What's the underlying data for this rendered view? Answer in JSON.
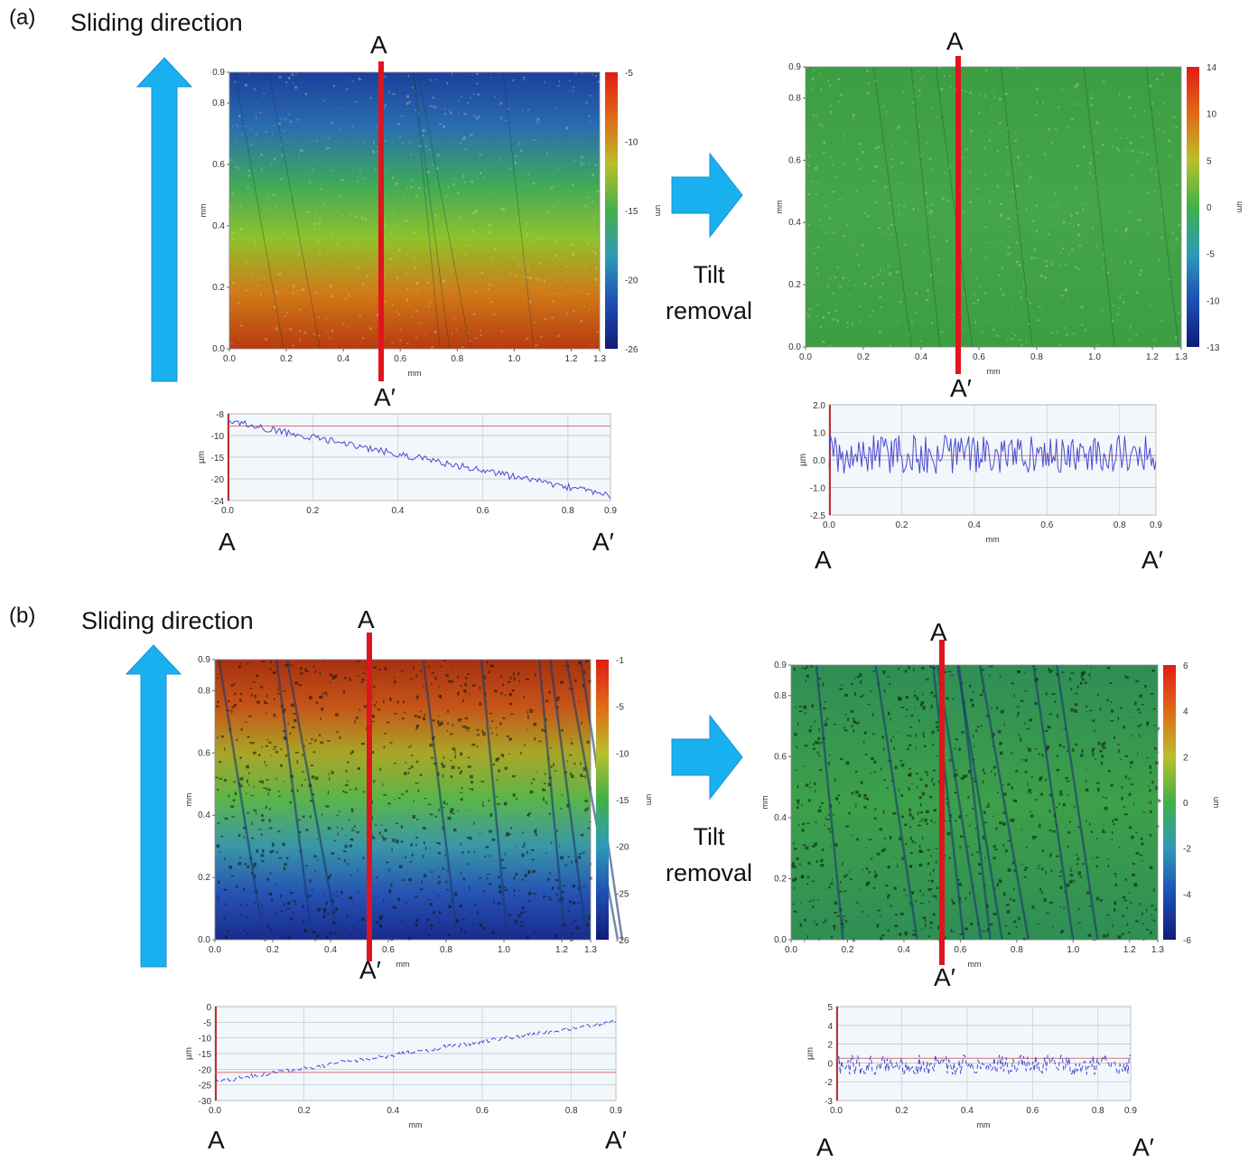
{
  "figure": {
    "panels": [
      {
        "label": "(a)",
        "sliding_direction": "Sliding direction",
        "tilt_removal": [
          "Tilt",
          "removal"
        ],
        "section": {
          "top": "A",
          "bottom": "A′"
        },
        "maps": [
          {
            "x_ticks": [
              "0.0",
              "0.2",
              "0.4",
              "0.6",
              "0.8",
              "1.0",
              "1.2",
              "1.3"
            ],
            "x_label": "mm",
            "y_ticks": [
              "0.0",
              "0.2",
              "0.4",
              "0.6",
              "0.8",
              "0.9"
            ],
            "y_label": "mm",
            "colorbar_ticks": [
              "-5",
              "-10",
              "-15",
              "-20",
              "-26"
            ],
            "colorbar_unit": "um",
            "gradient": [
              "#b83a10",
              "#d07a18",
              "#8fc22c",
              "#3ea85a",
              "#2a6eb0",
              "#1c3f9c"
            ]
          },
          {
            "x_ticks": [
              "0.0",
              "0.2",
              "0.4",
              "0.6",
              "0.8",
              "1.0",
              "1.2",
              "1.3"
            ],
            "x_label": "mm",
            "y_ticks": [
              "0.0",
              "0.2",
              "0.4",
              "0.6",
              "0.8",
              "0.9"
            ],
            "y_label": "mm",
            "colorbar_ticks": [
              "14",
              "10",
              "5",
              "0",
              "-5",
              "-10",
              "-13"
            ],
            "colorbar_unit": "um",
            "gradient": [
              "#3c9e42",
              "#44a648",
              "#3c9e42"
            ]
          }
        ],
        "profiles": [
          {
            "y_ticks": [
              "-8",
              "-10",
              "-15",
              "-20",
              "-24"
            ],
            "y_label": "µm",
            "x_ticks": [
              "0.0",
              "0.2",
              "0.4",
              "0.6",
              "0.8",
              "0.9"
            ],
            "x_label": ""
          },
          {
            "y_ticks": [
              "2.0",
              "1.0",
              "0.0",
              "-1.0",
              "-2.5"
            ],
            "y_label": "µm",
            "x_ticks": [
              "0.0",
              "0.2",
              "0.4",
              "0.6",
              "0.8",
              "0.9"
            ],
            "x_label": "mm"
          }
        ]
      },
      {
        "label": "(b)",
        "sliding_direction": "Sliding direction",
        "tilt_removal": [
          "Tilt",
          "removal"
        ],
        "section": {
          "top": "A",
          "bottom": "A′"
        },
        "maps": [
          {
            "x_ticks": [
              "0.0",
              "0.2",
              "0.4",
              "0.6",
              "0.8",
              "1.0",
              "1.2",
              "1.3"
            ],
            "x_label": "mm",
            "y_ticks": [
              "0.0",
              "0.2",
              "0.4",
              "0.6",
              "0.8",
              "0.9"
            ],
            "y_label": "mm",
            "colorbar_ticks": [
              "-1",
              "-5",
              "-10",
              "-15",
              "-20",
              "-25",
              "-26"
            ],
            "colorbar_unit": "um",
            "gradient": [
              "#1a2a8e",
              "#2554b4",
              "#3a96a8",
              "#5ab54a",
              "#a9a628",
              "#c65418",
              "#a83010"
            ]
          },
          {
            "x_ticks": [
              "0.0",
              "0.2",
              "0.4",
              "0.6",
              "0.8",
              "1.0",
              "1.2",
              "1.3"
            ],
            "x_label": "mm",
            "y_ticks": [
              "0.0",
              "0.2",
              "0.4",
              "0.6",
              "0.8",
              "0.9"
            ],
            "y_label": "mm",
            "colorbar_ticks": [
              "6",
              "4",
              "2",
              "0",
              "-2",
              "-4",
              "-6"
            ],
            "colorbar_unit": "um",
            "gradient": [
              "#2f8e55",
              "#3da04a",
              "#2f8e55"
            ]
          }
        ],
        "profiles": [
          {
            "y_ticks": [
              "0",
              "-5",
              "-10",
              "-15",
              "-20",
              "-25",
              "-30"
            ],
            "y_label": "µm",
            "x_ticks": [
              "0.0",
              "0.2",
              "0.4",
              "0.6",
              "0.8",
              "0.9"
            ],
            "x_label": "mm"
          },
          {
            "y_ticks": [
              "5",
              "4",
              "2",
              "0",
              "-2",
              "-3"
            ],
            "y_label": "µm",
            "x_ticks": [
              "0.0",
              "0.2",
              "0.4",
              "0.6",
              "0.8",
              "0.9"
            ],
            "x_label": "mm"
          }
        ]
      }
    ],
    "colors": {
      "arrow": "#19b0f0",
      "arrow_stroke": "#1a8fd0",
      "section_line": "#e0141c",
      "profile_line": "#4a4ad0",
      "profile_ref": "#d06060",
      "profile_bg": "#f2f7fc"
    }
  }
}
